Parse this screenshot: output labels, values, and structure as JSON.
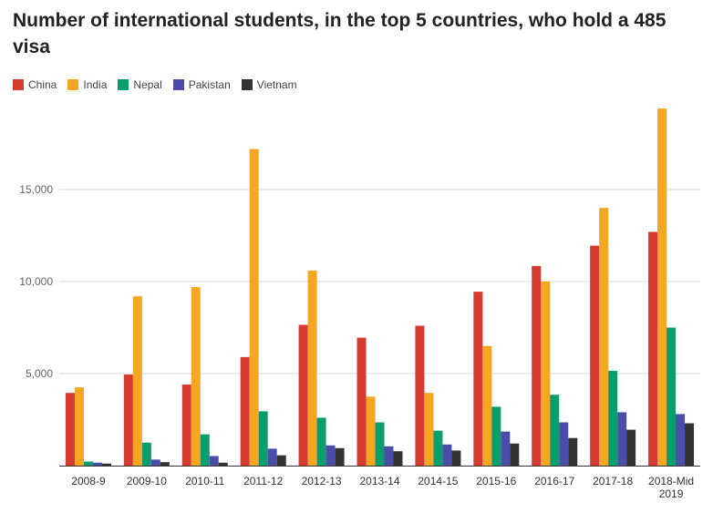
{
  "chart_data": {
    "type": "bar",
    "title": "Number of international students, in the top 5 countries, who hold a 485 visa",
    "xlabel": "",
    "ylabel": "",
    "ylim": [
      0,
      20000
    ],
    "yticks": [
      5000,
      10000,
      15000
    ],
    "ytick_labels": [
      "5,000",
      "10,000",
      "15,000"
    ],
    "grid": true,
    "legend_position": "top-left",
    "categories": [
      [
        "2008-9"
      ],
      [
        "2009-10"
      ],
      [
        "2010-11"
      ],
      [
        "2011-12"
      ],
      [
        "2012-13"
      ],
      [
        "2013-14"
      ],
      [
        "2014-15"
      ],
      [
        "2015-16"
      ],
      [
        "2016-17"
      ],
      [
        "2017-18"
      ],
      [
        "2018-Mid",
        "2019"
      ]
    ],
    "series": [
      {
        "name": "China",
        "color": "#d63b2f",
        "values": [
          3950,
          4950,
          4400,
          5900,
          7650,
          6950,
          7600,
          9450,
          10850,
          11950,
          12700
        ]
      },
      {
        "name": "India",
        "color": "#f5a623",
        "values": [
          4250,
          9200,
          9700,
          17200,
          10600,
          3750,
          3950,
          6500,
          10000,
          14000,
          19400
        ]
      },
      {
        "name": "Nepal",
        "color": "#0a9e6e",
        "values": [
          220,
          1250,
          1700,
          2950,
          2600,
          2350,
          1900,
          3200,
          3850,
          5150,
          7500
        ]
      },
      {
        "name": "Pakistan",
        "color": "#4b4da8",
        "values": [
          160,
          330,
          520,
          920,
          1100,
          1050,
          1150,
          1850,
          2350,
          2900,
          2800
        ]
      },
      {
        "name": "Vietnam",
        "color": "#333333",
        "values": [
          110,
          190,
          160,
          560,
          950,
          780,
          820,
          1200,
          1500,
          1950,
          2300
        ]
      }
    ]
  }
}
